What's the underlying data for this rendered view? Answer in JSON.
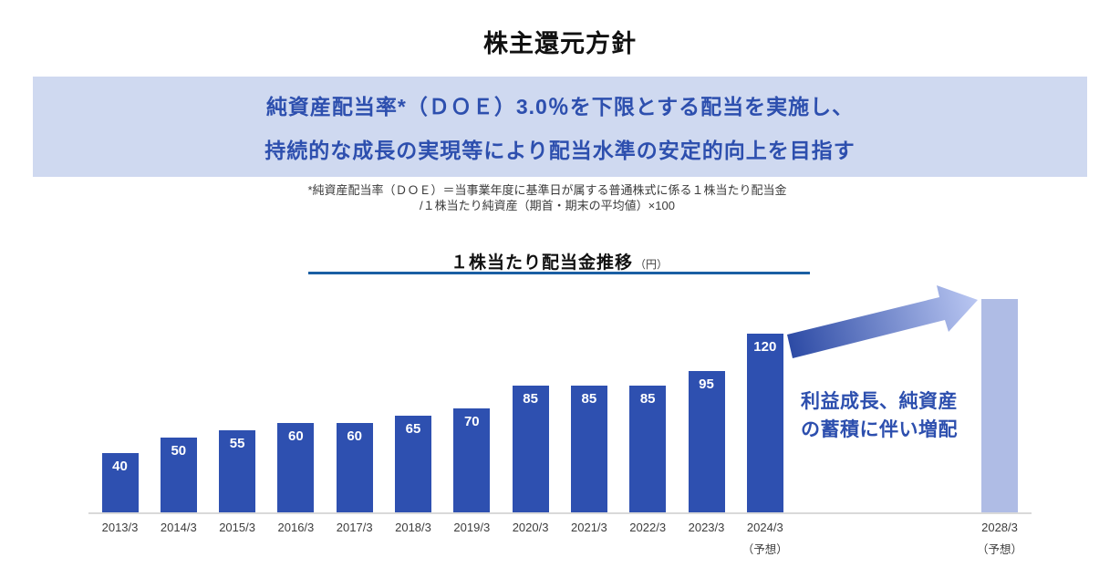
{
  "title": "株主還元方針",
  "banner": {
    "line1": "純資産配当率*（ＤＯＥ）3.0％を下限とする配当を実施し、",
    "line2": "持続的な成長の実現等により配当水準の安定的向上を目指す"
  },
  "footnote": {
    "line1": "*純資産配当率（ＤＯＥ）＝当事業年度に基準日が属する普通株式に係る１株当たり配当金",
    "line2": "/１株当たり純資産（期首・期末の平均値）×100"
  },
  "chart_header": {
    "title": "１株当たり配当金推移",
    "unit": "（円）"
  },
  "annotation": {
    "line1": "利益成長、純資産",
    "line2": "の蓄積に伴い増配"
  },
  "chart_data": {
    "type": "bar",
    "title": "１株当たり配当金推移（円）",
    "categories": [
      "2013/3",
      "2014/3",
      "2015/3",
      "2016/3",
      "2017/3",
      "2018/3",
      "2019/3",
      "2020/3",
      "2021/3",
      "2022/3",
      "2023/3",
      "2024/3"
    ],
    "values": [
      40,
      50,
      55,
      60,
      60,
      65,
      70,
      85,
      85,
      85,
      95,
      120
    ],
    "forecast_note": "（予想）",
    "forecast_category_index": 11,
    "future_bar": {
      "category": "2028/3",
      "note": "（予想）",
      "estimated_value": 144,
      "value_label_shown": false
    },
    "annotation": "利益成長、純資産の蓄積に伴い増配",
    "value_labels": "inside-top",
    "grid": false,
    "ylim": [
      0,
      150
    ],
    "bar_color": "#2e50b0",
    "future_bar_color": "#afbce5",
    "value_label_color": "#ffffff"
  },
  "colors": {
    "banner_bg": "#cfd9f0",
    "accent_text": "#2d4fae",
    "title_underline": "#1a5fa3",
    "axis_line": "#d9d9d9",
    "arrow_gradient_from": "#2b49a4",
    "arrow_gradient_to": "#bac7f2"
  }
}
